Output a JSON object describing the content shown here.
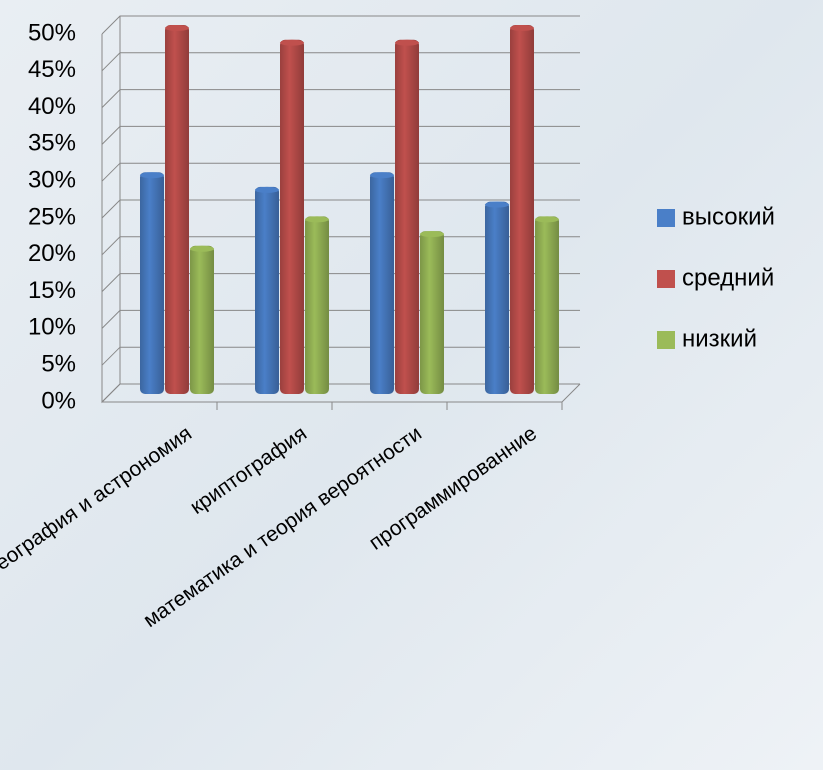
{
  "chart_data": {
    "type": "bar",
    "categories": [
      "география и астрономия",
      "криптография",
      "математика и теория вероятности",
      "программированние"
    ],
    "series": [
      {
        "name": "высокий",
        "color": "#4a7fc8",
        "values": [
          30,
          28,
          30,
          26
        ]
      },
      {
        "name": "средний",
        "color": "#c0504d",
        "values": [
          50,
          48,
          48,
          50
        ]
      },
      {
        "name": "низкий",
        "color": "#9bbb59",
        "values": [
          20,
          24,
          22,
          24
        ]
      }
    ],
    "ylim": [
      0,
      50
    ],
    "yticks": [
      {
        "value": 0,
        "label": "0%"
      },
      {
        "value": 5,
        "label": "5%"
      },
      {
        "value": 10,
        "label": "10%"
      },
      {
        "value": 15,
        "label": "15%"
      },
      {
        "value": 20,
        "label": "20%"
      },
      {
        "value": 25,
        "label": "25%"
      },
      {
        "value": 30,
        "label": "30%"
      },
      {
        "value": 35,
        "label": "35%"
      },
      {
        "value": 40,
        "label": "40%"
      },
      {
        "value": 45,
        "label": "45%"
      },
      {
        "value": 50,
        "label": "50%"
      }
    ],
    "grid": true,
    "legend": "right"
  }
}
